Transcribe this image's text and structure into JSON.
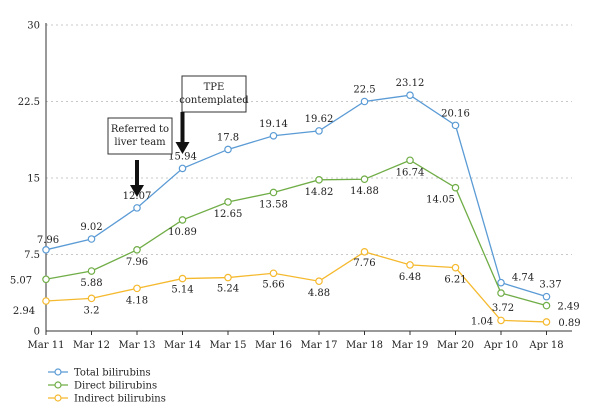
{
  "chart_data": {
    "type": "line",
    "categories": [
      "Mar 11",
      "Mar 12",
      "Mar 13",
      "Mar 14",
      "Mar 15",
      "Mar 16",
      "Mar 17",
      "Mar 18",
      "Mar 19",
      "Mar 20",
      "Apr 10",
      "Apr 18"
    ],
    "ylim": [
      0,
      30
    ],
    "yticks": [
      0,
      7.5,
      15,
      22.5,
      30
    ],
    "ytick_labels": [
      "0",
      "7.5",
      "15",
      "22.5",
      "30"
    ],
    "grid": "horizontal dotted",
    "legend_position": "bottom-left",
    "series": [
      {
        "name": "Total bilirubins",
        "color": "#5b9bd5",
        "values": [
          7.96,
          9.02,
          12.07,
          15.94,
          17.8,
          19.14,
          19.62,
          22.5,
          23.12,
          20.16,
          4.74,
          3.37
        ],
        "labels": [
          "7.96",
          "9.02",
          "12.07",
          "15.94",
          "17.8",
          "19.14",
          "19.62",
          "22.5",
          "23.12",
          "20.16",
          "4.74",
          "3.37"
        ]
      },
      {
        "name": "Direct bilirubins",
        "color": "#70ad47",
        "values": [
          5.07,
          5.88,
          7.96,
          10.89,
          12.65,
          13.58,
          14.82,
          14.88,
          16.74,
          14.05,
          3.72,
          2.49
        ],
        "labels": [
          "5.07",
          "5.88",
          "7.96",
          "10.89",
          "12.65",
          "13.58",
          "14.82",
          "14.88",
          "16.74",
          "14.05",
          "3.72",
          "2.49"
        ]
      },
      {
        "name": "Indirect bilirubins",
        "color": "#f5b92e",
        "values": [
          2.94,
          3.2,
          4.18,
          5.14,
          5.24,
          5.66,
          4.88,
          7.76,
          6.48,
          6.21,
          1.04,
          0.89
        ],
        "labels": [
          "2.94",
          "3.2",
          "4.18",
          "5.14",
          "5.24",
          "5.66",
          "4.88",
          "7.76",
          "6.48",
          "6.21",
          "1.04",
          "0.89"
        ]
      }
    ],
    "annotations": [
      {
        "lines": [
          "Referred to",
          "liver team"
        ],
        "category_index": 2
      },
      {
        "lines": [
          "TPE",
          "contemplated"
        ],
        "category_index": 3
      }
    ]
  }
}
